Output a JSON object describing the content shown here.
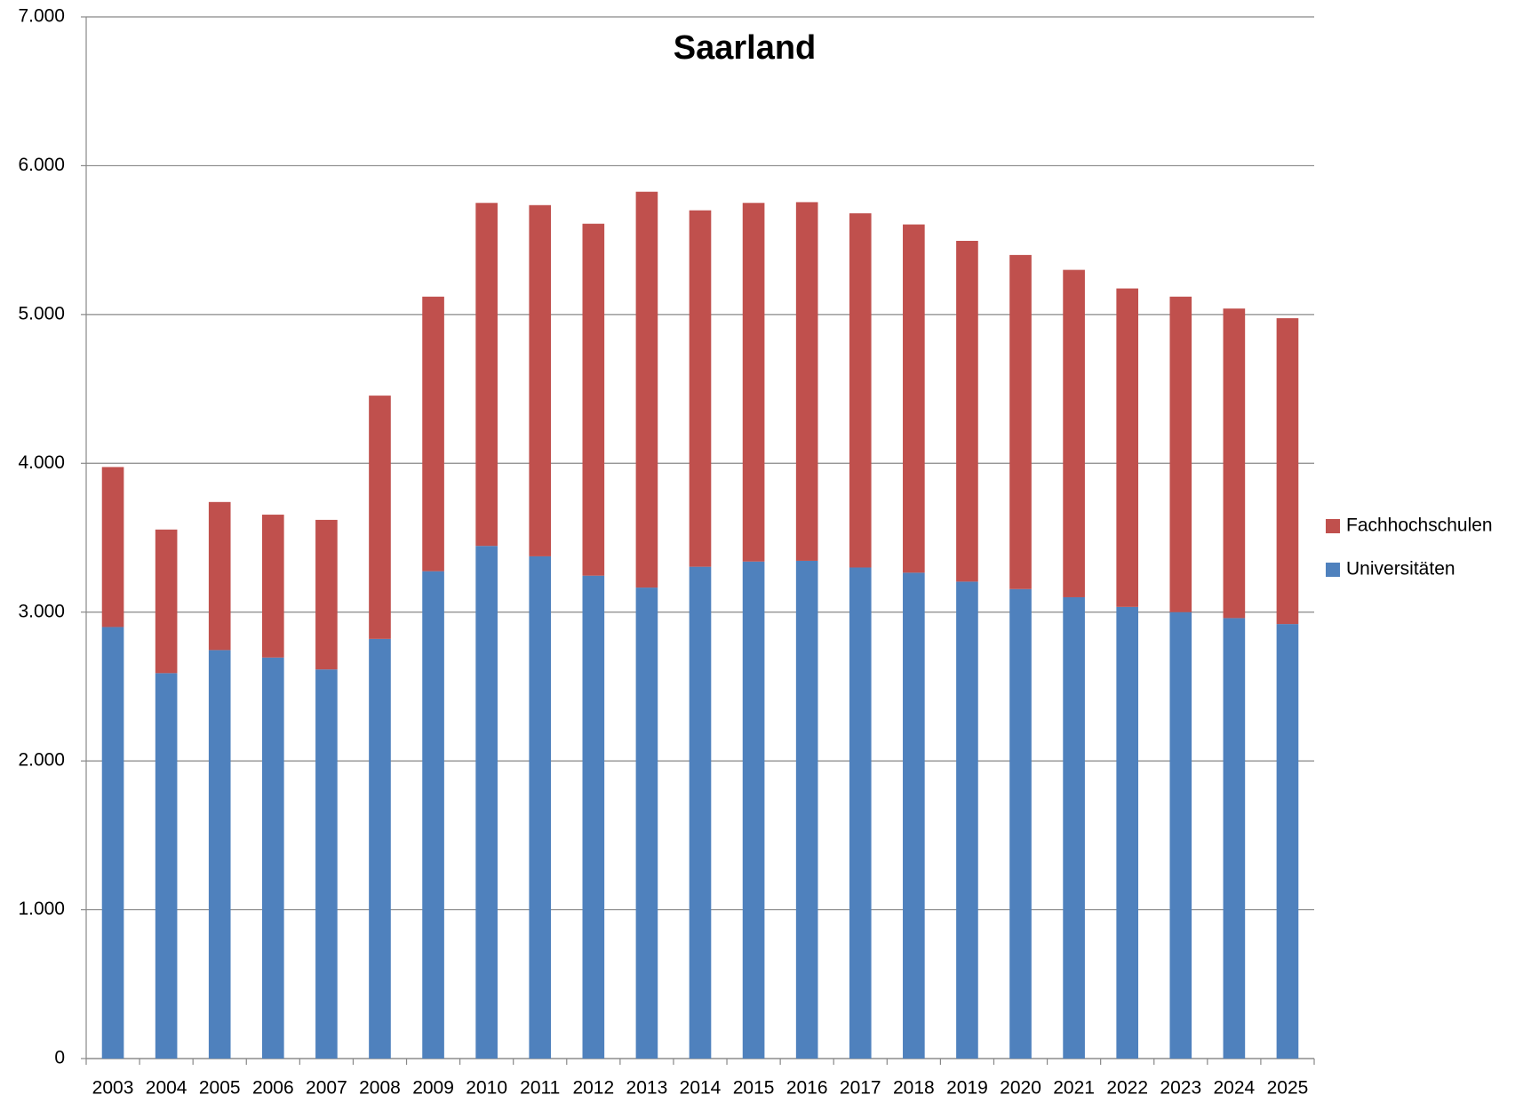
{
  "chart_data": {
    "type": "stacked_bar",
    "title": "Saarland",
    "categories": [
      "2003",
      "2004",
      "2005",
      "2006",
      "2007",
      "2008",
      "2009",
      "2010",
      "2011",
      "2012",
      "2013",
      "2014",
      "2015",
      "2016",
      "2017",
      "2018",
      "2019",
      "2020",
      "2021",
      "2022",
      "2023",
      "2024",
      "2025"
    ],
    "series": [
      {
        "name": "Universitäten",
        "color": "#4f81bd",
        "values": [
          2900,
          2590,
          2745,
          2695,
          2615,
          2820,
          3275,
          3445,
          3375,
          3245,
          3165,
          3305,
          3340,
          3345,
          3300,
          3265,
          3205,
          3155,
          3100,
          3035,
          3000,
          2960,
          2920
        ]
      },
      {
        "name": "Fachhochschulen",
        "color": "#c0504d",
        "values": [
          1075,
          965,
          995,
          960,
          1005,
          1635,
          1845,
          2305,
          2360,
          2365,
          2660,
          2395,
          2410,
          2410,
          2380,
          2340,
          2290,
          2245,
          2200,
          2140,
          2120,
          2080,
          2055
        ]
      }
    ],
    "ylim": [
      0,
      7000
    ],
    "yticks": [
      0,
      {
        "value": 1000,
        "label": "1.000"
      },
      {
        "value": 2000,
        "label": "2.000"
      },
      {
        "value": 3000,
        "label": "3.000"
      },
      {
        "value": 4000,
        "label": "4.000"
      },
      {
        "value": 5000,
        "label": "5.000"
      },
      {
        "value": 6000,
        "label": "6.000"
      },
      {
        "value": 7000,
        "label": "7.000"
      }
    ],
    "grid": true,
    "legend": "right"
  }
}
